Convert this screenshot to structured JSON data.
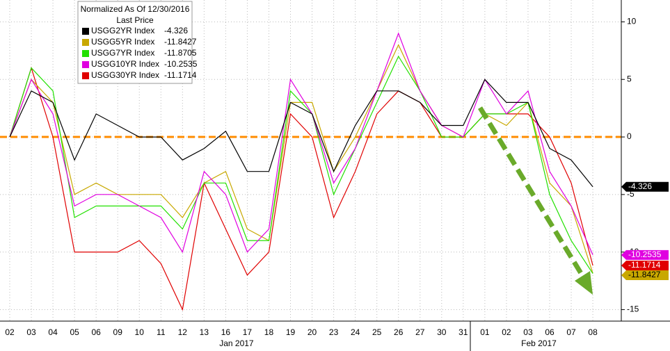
{
  "chart_data": {
    "type": "line",
    "legend_title": "Normalized As Of 12/30/2016",
    "legend_subtitle": "Last Price",
    "categories": [
      "02",
      "03",
      "04",
      "05",
      "06",
      "09",
      "10",
      "11",
      "12",
      "13",
      "16",
      "17",
      "18",
      "19",
      "20",
      "23",
      "24",
      "25",
      "26",
      "27",
      "30",
      "31",
      "01",
      "02",
      "03",
      "06",
      "07",
      "08"
    ],
    "month_labels": [
      "Jan 2017",
      "Feb 2017"
    ],
    "series": [
      {
        "name": "USGG2YR Index",
        "color": "#000000",
        "values": [
          0,
          4,
          3,
          -2,
          2,
          1,
          0,
          0,
          -2,
          -1,
          0.5,
          -3,
          -3,
          3,
          2,
          -3,
          1,
          4,
          4,
          3,
          1,
          1,
          5,
          3,
          3,
          -1,
          -2,
          -4.326
        ]
      },
      {
        "name": "USGG5YR Index",
        "color": "#c8a800",
        "values": [
          0,
          5,
          3,
          -5,
          -4,
          -5,
          -5,
          -5,
          -7,
          -4,
          -3,
          -8,
          -9,
          3,
          3,
          -3,
          0,
          4,
          8,
          4,
          1,
          0,
          2,
          1,
          3,
          -4,
          -6,
          -11.8427
        ]
      },
      {
        "name": "USGG7YR Index",
        "color": "#22e000",
        "values": [
          0,
          6,
          4,
          -7,
          -6,
          -6,
          -6,
          -6,
          -8,
          -4,
          -4,
          -9,
          -9,
          4,
          2,
          -5,
          -1,
          3,
          7,
          4,
          0,
          0,
          2,
          2,
          3,
          -5,
          -9,
          -11.8705
        ]
      },
      {
        "name": "USGG10YR Index",
        "color": "#e000e0",
        "values": [
          0,
          5,
          2,
          -6,
          -5,
          -5,
          -6,
          -7,
          -10,
          -3,
          -5,
          -10,
          -8,
          5,
          2,
          -4,
          -1,
          4,
          9,
          4,
          1,
          0,
          5,
          2,
          4,
          -3,
          -6,
          -10.2535
        ]
      },
      {
        "name": "USGG30YR Index",
        "color": "#e00000",
        "values": [
          0,
          6,
          0,
          -10,
          -10,
          -10,
          -9,
          -11,
          -15,
          -4,
          -8,
          -12,
          -10,
          2,
          0,
          -7,
          -3,
          2,
          4,
          3,
          0,
          0,
          2,
          2,
          2,
          0,
          -4,
          -11.1714
        ]
      }
    ],
    "ylim": [
      -16,
      11.9
    ],
    "yticks": [
      10,
      5,
      0,
      -5,
      -10,
      -15
    ],
    "reference_line": {
      "value": 0,
      "color": "#ff8c00"
    },
    "grid": true
  }
}
